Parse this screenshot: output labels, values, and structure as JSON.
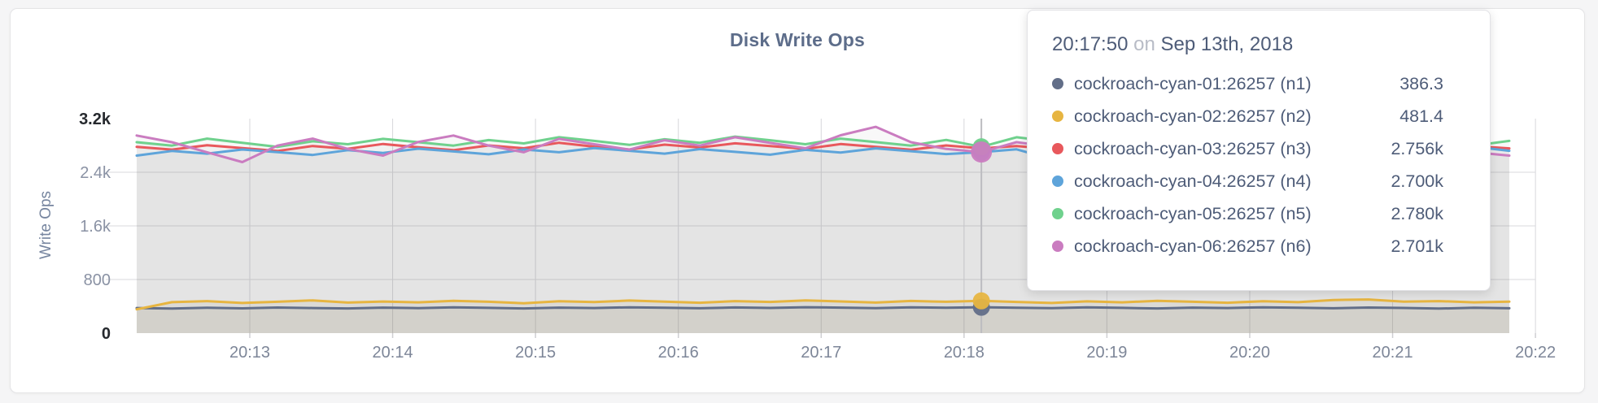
{
  "page": {
    "background": "#f5f5f6",
    "panel_border": "#e4e4e6"
  },
  "chart_data": {
    "type": "line",
    "title": "Disk Write Ops",
    "ylabel": "Write Ops",
    "xlabel": "",
    "ylim": [
      0,
      3200
    ],
    "grid": "on",
    "legend_position": "tooltip",
    "yticks": [
      {
        "value": 0,
        "label": "0",
        "emphasis": true,
        "grid": false
      },
      {
        "value": 800,
        "label": "800",
        "emphasis": false,
        "grid": true
      },
      {
        "value": 1600,
        "label": "1.6k",
        "emphasis": false,
        "grid": true
      },
      {
        "value": 2400,
        "label": "2.4k",
        "emphasis": false,
        "grid": true
      },
      {
        "value": 3200,
        "label": "3.2k",
        "emphasis": true,
        "grid": false
      }
    ],
    "xticks": [
      "20:13",
      "20:14",
      "20:15",
      "20:16",
      "20:17",
      "20:18",
      "20:19",
      "20:20",
      "20:21",
      "20:22"
    ],
    "x_start_time": "20:12:10",
    "x_end_time": "20:21:50",
    "hover_index": 24,
    "series": [
      {
        "name": "cockroach-cyan-01:26257 (n1)",
        "color": "#626e88",
        "fill": "rgba(146,136,98,0.10)",
        "values": [
          375,
          366,
          378,
          370,
          382,
          374,
          368,
          380,
          373,
          384,
          377,
          369,
          381,
          374,
          386,
          379,
          371,
          383,
          376,
          387,
          380,
          373,
          385,
          378,
          386.3,
          379,
          372,
          384,
          377,
          369,
          381,
          375,
          386,
          379,
          371,
          382,
          376,
          366,
          378,
          371
        ]
      },
      {
        "name": "cockroach-cyan-02:26257 (n2)",
        "color": "#e7b541",
        "fill": "rgba(146,136,98,0.10)",
        "values": [
          355,
          462,
          478,
          450,
          468,
          488,
          456,
          472,
          460,
          482,
          468,
          446,
          476,
          463,
          486,
          470,
          453,
          478,
          466,
          488,
          473,
          456,
          480,
          468,
          481.4,
          466,
          450,
          474,
          460,
          482,
          468,
          453,
          476,
          462,
          495,
          502,
          470,
          478,
          460,
          470
        ]
      },
      {
        "name": "cockroach-cyan-03:26257 (n3)",
        "color": "#e8585c",
        "fill": "rgba(124,124,132,0.055)",
        "values": [
          2780,
          2738,
          2802,
          2760,
          2718,
          2792,
          2750,
          2822,
          2772,
          2730,
          2800,
          2758,
          2840,
          2782,
          2740,
          2812,
          2770,
          2832,
          2790,
          2748,
          2820,
          2778,
          2736,
          2800,
          2756,
          2792,
          2748,
          2812,
          2770,
          2728,
          2800,
          2756,
          2822,
          2780,
          2738,
          2802,
          2768,
          2726,
          2790,
          2756
        ]
      },
      {
        "name": "cockroach-cyan-04:26257 (n4)",
        "color": "#5ea4da",
        "fill": "rgba(124,124,132,0.055)",
        "values": [
          2648,
          2718,
          2678,
          2740,
          2700,
          2658,
          2730,
          2688,
          2752,
          2710,
          2668,
          2740,
          2698,
          2760,
          2720,
          2678,
          2746,
          2704,
          2662,
          2734,
          2694,
          2756,
          2714,
          2672,
          2700,
          2742,
          2596,
          2556,
          2678,
          2722,
          2638,
          2700,
          2752,
          2710,
          2668,
          2732,
          2690,
          2648,
          2782,
          2720
        ]
      },
      {
        "name": "cockroach-cyan-05:26257 (n5)",
        "color": "#6fd18d",
        "fill": "rgba(124,124,132,0.055)",
        "values": [
          2848,
          2798,
          2902,
          2840,
          2778,
          2862,
          2818,
          2898,
          2848,
          2798,
          2880,
          2830,
          2922,
          2868,
          2808,
          2892,
          2840,
          2932,
          2878,
          2818,
          2902,
          2850,
          2798,
          2882,
          2780,
          2922,
          2858,
          2808,
          2892,
          2838,
          3002,
          2898,
          2838,
          2778,
          2862,
          2818,
          2902,
          2848,
          2798,
          2868
        ]
      },
      {
        "name": "cockroach-cyan-06:26257 (n6)",
        "color": "#ca7cc0",
        "fill": "rgba(124,124,132,0.055)",
        "values": [
          2948,
          2848,
          2698,
          2552,
          2798,
          2902,
          2748,
          2648,
          2852,
          2948,
          2798,
          2698,
          2898,
          2818,
          2738,
          2878,
          2798,
          2922,
          2838,
          2758,
          2952,
          3078,
          2848,
          2748,
          2701,
          2848,
          2778,
          2698,
          2822,
          2758,
          2698,
          2778,
          2848,
          2698,
          2598,
          2748,
          2818,
          2758,
          2698,
          2648
        ]
      }
    ]
  },
  "tooltip": {
    "time": "20:17:50",
    "conjunction": "on",
    "date": "Sep 13th, 2018",
    "rows": [
      {
        "label": "cockroach-cyan-01:26257 (n1)",
        "value": "386.3",
        "color": "#626e88"
      },
      {
        "label": "cockroach-cyan-02:26257 (n2)",
        "value": "481.4",
        "color": "#e7b541"
      },
      {
        "label": "cockroach-cyan-03:26257 (n3)",
        "value": "2.756k",
        "color": "#e8585c"
      },
      {
        "label": "cockroach-cyan-04:26257 (n4)",
        "value": "2.700k",
        "color": "#5ea4da"
      },
      {
        "label": "cockroach-cyan-05:26257 (n5)",
        "value": "2.780k",
        "color": "#6fd18d"
      },
      {
        "label": "cockroach-cyan-06:26257 (n6)",
        "value": "2.701k",
        "color": "#ca7cc0"
      }
    ]
  }
}
